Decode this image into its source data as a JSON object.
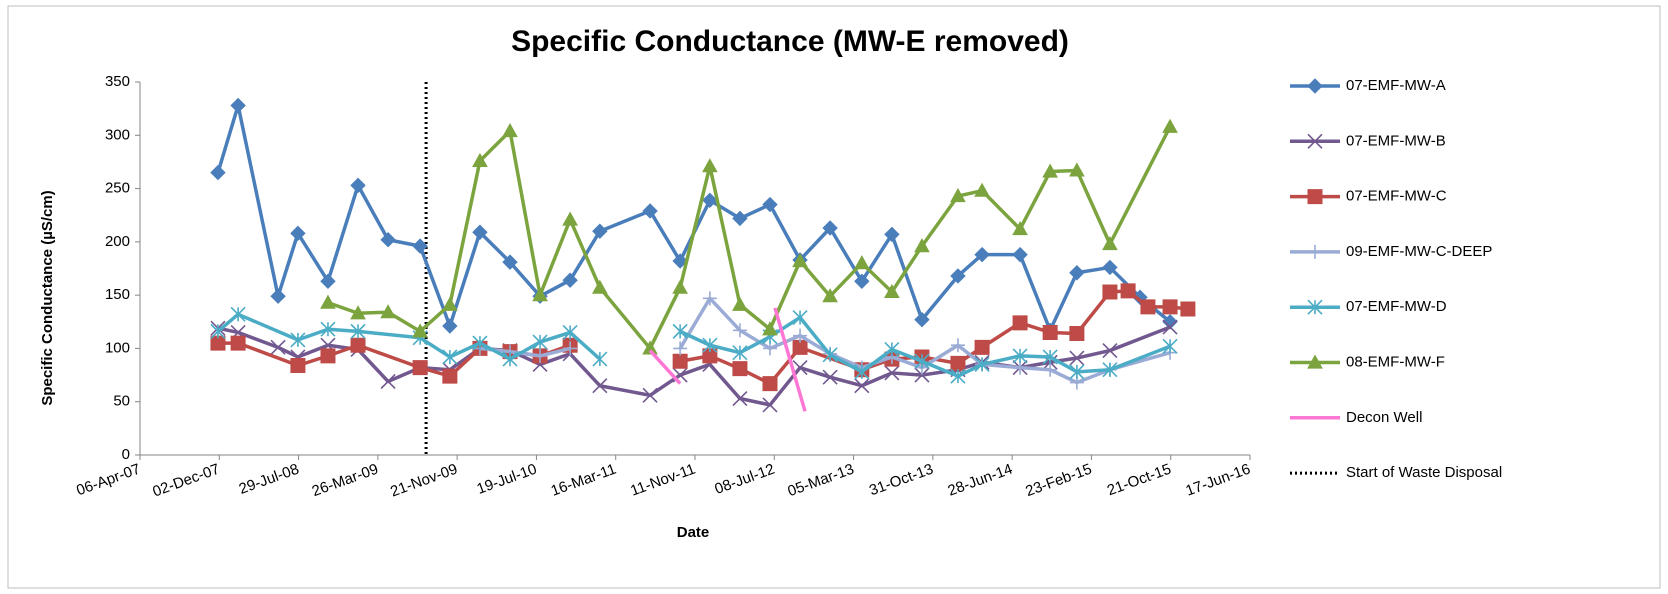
{
  "chart_data": {
    "type": "line",
    "title": "Specific Conductance (MW-E removed)",
    "x_label": "Date",
    "y_label": "Specific Conductance (µS/cm)",
    "xlim": [
      "2007-04-06",
      "2016-06-17"
    ],
    "xticks": [
      {
        "value": "2007-04-06",
        "label": "06-Apr-07"
      },
      {
        "value": "2007-12-02",
        "label": "02-Dec-07"
      },
      {
        "value": "2008-07-29",
        "label": "29-Jul-08"
      },
      {
        "value": "2009-03-26",
        "label": "26-Mar-09"
      },
      {
        "value": "2009-11-21",
        "label": "21-Nov-09"
      },
      {
        "value": "2010-07-19",
        "label": "19-Jul-10"
      },
      {
        "value": "2011-03-16",
        "label": "16-Mar-11"
      },
      {
        "value": "2011-11-11",
        "label": "11-Nov-11"
      },
      {
        "value": "2012-07-08",
        "label": "08-Jul-12"
      },
      {
        "value": "2013-03-05",
        "label": "05-Mar-13"
      },
      {
        "value": "2013-10-31",
        "label": "31-Oct-13"
      },
      {
        "value": "2014-06-28",
        "label": "28-Jun-14"
      },
      {
        "value": "2015-02-23",
        "label": "23-Feb-15"
      },
      {
        "value": "2015-10-21",
        "label": "21-Oct-15"
      },
      {
        "value": "2016-06-17",
        "label": "17-Jun-16"
      }
    ],
    "ylim": [
      0,
      350
    ],
    "yticks": [
      0,
      50,
      100,
      150,
      200,
      250,
      300,
      350
    ],
    "grid": false,
    "legend": "right",
    "series": [
      {
        "name": "07-EMF-MW-A",
        "color": "#4a7ebb",
        "marker": "diamond",
        "x": [
          "2007-11-28",
          "2008-01-28",
          "2008-05-28",
          "2008-07-27",
          "2008-10-26",
          "2009-01-25",
          "2009-04-26",
          "2009-08-01",
          "2009-10-30",
          "2010-01-29",
          "2010-04-30",
          "2010-07-30",
          "2010-10-29",
          "2011-01-27",
          "2011-06-28",
          "2011-09-27",
          "2011-12-26",
          "2012-03-26",
          "2012-06-25",
          "2012-09-24",
          "2012-12-24",
          "2013-03-30",
          "2013-06-29",
          "2013-09-28",
          "2014-01-15",
          "2014-03-29",
          "2014-07-22",
          "2014-10-21",
          "2015-01-10",
          "2015-04-20",
          "2015-07-20",
          "2015-10-19"
        ],
        "values": [
          265,
          328,
          149,
          208,
          163,
          253,
          202,
          196,
          121,
          209,
          181,
          149,
          164,
          210,
          229,
          182,
          239,
          222,
          235,
          183,
          213,
          163,
          207,
          127,
          168,
          188,
          188,
          117,
          171,
          176,
          148,
          125
        ]
      },
      {
        "name": "07-EMF-MW-B",
        "color": "#71588f",
        "marker": "x",
        "x": [
          "2007-11-28",
          "2008-01-28",
          "2008-05-28",
          "2008-07-27",
          "2008-10-26",
          "2009-01-25",
          "2009-04-26",
          "2009-08-01",
          "2009-10-30",
          "2010-01-29",
          "2010-04-30",
          "2010-07-30",
          "2010-10-29",
          "2011-01-27",
          "2011-06-28",
          "2011-09-27",
          "2011-12-26",
          "2012-03-26",
          "2012-06-25",
          "2012-09-24",
          "2012-12-24",
          "2013-03-30",
          "2013-06-29",
          "2013-09-28",
          "2014-01-15",
          "2014-03-29",
          "2014-07-22",
          "2014-10-21",
          "2015-01-10",
          "2015-04-20",
          "2015-10-19"
        ],
        "values": [
          119,
          115,
          101,
          92,
          103,
          99,
          69,
          82,
          80,
          100,
          98,
          85,
          95,
          65,
          56,
          75,
          85,
          53,
          47,
          82,
          73,
          65,
          77,
          75,
          80,
          87,
          82,
          87,
          91,
          98,
          120
        ]
      },
      {
        "name": "07-EMF-MW-C",
        "color": "#be4b48",
        "marker": "square",
        "x": [
          "2007-11-28",
          "2008-01-28",
          "2008-07-27",
          "2008-10-26",
          "2009-01-25",
          "2009-08-01",
          "2009-10-30",
          "2010-01-29",
          "2010-04-30",
          "2010-07-30",
          "2010-10-29",
          "2011-06-28",
          "2011-09-27",
          "2011-12-26",
          "2012-03-26",
          "2012-06-25",
          "2012-09-24",
          "2013-03-30",
          "2013-06-29",
          "2013-09-28",
          "2014-01-15",
          "2014-03-29",
          "2014-07-22",
          "2014-10-21",
          "2015-01-10",
          "2015-04-20",
          "2015-06-14",
          "2015-08-13",
          "2015-10-19",
          "2015-12-12"
        ],
        "values": [
          105,
          105,
          84,
          93,
          103,
          82,
          74,
          100,
          97,
          93,
          103,
          null,
          88,
          93,
          81,
          67,
          101,
          80,
          90,
          92,
          86,
          101,
          124,
          115,
          114,
          153,
          154,
          139,
          139,
          137
        ]
      },
      {
        "name": "09-EMF-MW-C-DEEP",
        "color": "#9aabd5",
        "marker": "plus",
        "x": [
          "2010-01-29",
          "2010-04-30",
          "2010-07-30",
          "2010-10-29",
          "2011-06-28",
          "2011-09-27",
          "2011-12-26",
          "2012-03-26",
          "2012-06-25",
          "2012-09-24",
          "2012-12-24",
          "2013-03-30",
          "2013-06-29",
          "2013-09-28",
          "2014-01-15",
          "2014-03-29",
          "2014-07-22",
          "2014-10-21",
          "2015-01-10",
          "2015-04-20",
          "2015-10-19"
        ],
        "values": [
          100,
          97,
          93,
          100,
          null,
          100,
          147,
          117,
          100,
          112,
          95,
          82,
          92,
          82,
          103,
          85,
          82,
          80,
          68,
          80,
          96
        ]
      },
      {
        "name": "07-EMF-MW-D",
        "color": "#4bacc6",
        "marker": "asterisk",
        "x": [
          "2007-11-28",
          "2008-01-28",
          "2008-07-27",
          "2008-10-26",
          "2009-01-25",
          "2009-08-01",
          "2009-10-30",
          "2010-01-29",
          "2010-04-30",
          "2010-07-30",
          "2010-10-29",
          "2011-01-27",
          "2011-06-28",
          "2011-09-27",
          "2011-12-26",
          "2012-03-26",
          "2012-06-25",
          "2012-09-24",
          "2012-12-24",
          "2013-03-30",
          "2013-06-29",
          "2013-09-28",
          "2014-01-15",
          "2014-03-29",
          "2014-07-22",
          "2014-10-21",
          "2015-01-10",
          "2015-04-20",
          "2015-10-19"
        ],
        "values": [
          116,
          132,
          108,
          118,
          116,
          110,
          92,
          105,
          90,
          106,
          115,
          90,
          null,
          116,
          103,
          96,
          111,
          129,
          94,
          78,
          99,
          88,
          74,
          85,
          93,
          92,
          78,
          80,
          102
        ]
      },
      {
        "name": "08-EMF-MW-F",
        "color": "#7ca43e",
        "marker": "triangle",
        "x": [
          "2008-10-26",
          "2009-01-25",
          "2009-04-26",
          "2009-08-01",
          "2009-10-30",
          "2010-01-29",
          "2010-04-30",
          "2010-07-30",
          "2010-10-29",
          "2011-01-27",
          "2011-06-28",
          "2011-09-27",
          "2011-12-26",
          "2012-03-26",
          "2012-06-25",
          "2012-09-24",
          "2012-12-24",
          "2013-03-30",
          "2013-06-29",
          "2013-09-28",
          "2014-01-15",
          "2014-03-29",
          "2014-07-22",
          "2014-10-21",
          "2015-01-10",
          "2015-04-20",
          "2015-10-19"
        ],
        "values": [
          143,
          133,
          134,
          116,
          141,
          276,
          304,
          150,
          221,
          157,
          100,
          157,
          271,
          141,
          118,
          182,
          149,
          180,
          153,
          196,
          243,
          248,
          212,
          266,
          267,
          198,
          308
        ]
      },
      {
        "name": "Decon Well",
        "color": "#ff77d4",
        "marker": "none",
        "x": [
          "2011-06-28",
          "2011-09-27",
          "2012-03-26",
          "2012-07-10",
          "2012-10-09"
        ],
        "values": [
          98,
          67,
          null,
          138,
          41
        ]
      }
    ],
    "reference_line": {
      "name": "Start of Waste Disposal",
      "x": "2009-08-19",
      "color": "#000000"
    }
  }
}
